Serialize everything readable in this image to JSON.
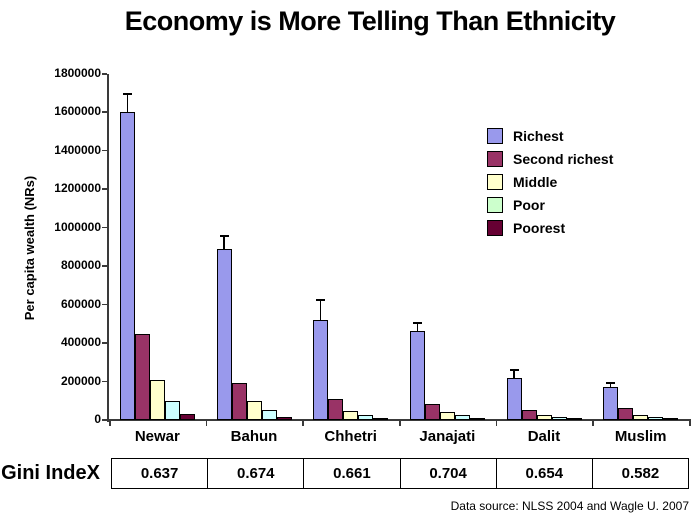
{
  "source": "Data source: NLSS 2004 and Wagle U. 2007",
  "gini": {
    "label": "Gini IndeX",
    "values": [
      "0.637",
      "0.674",
      "0.661",
      "0.704",
      "0.654",
      "0.582"
    ]
  },
  "chart_data": {
    "type": "bar",
    "title": "Economy is More Telling Than Ethnicity",
    "ylabel": "Per capita wealth (NRs)",
    "xlabel": "",
    "ylim": [
      0,
      1800000
    ],
    "ytick_step": 200000,
    "grid": false,
    "legend_position": "upper right",
    "categories": [
      "Newar",
      "Bahun",
      "Chhetri",
      "Janajati",
      "Dalit",
      "Muslim"
    ],
    "series": [
      {
        "name": "Richest",
        "color": "#9999EC",
        "legend_color": "#9999EC",
        "values": [
          1600000,
          890000,
          520000,
          465000,
          220000,
          170000
        ],
        "errors_plus": [
          95000,
          65000,
          105000,
          40000,
          38000,
          22000
        ]
      },
      {
        "name": "Second richest",
        "color": "#993366",
        "legend_color": "#993366",
        "values": [
          450000,
          195000,
          110000,
          85000,
          52000,
          60000
        ]
      },
      {
        "name": "Middle",
        "color": "#FFFFCC",
        "legend_color": "#FFFFCC",
        "values": [
          210000,
          100000,
          45000,
          42000,
          25000,
          28000
        ]
      },
      {
        "name": "Poor",
        "color": "#CCFFFF",
        "legend_color": "#CCFFCC",
        "values": [
          100000,
          50000,
          28000,
          25000,
          14000,
          16000
        ]
      },
      {
        "name": "Poorest",
        "color": "#660033",
        "legend_color": "#660033",
        "values": [
          30000,
          15000,
          10000,
          6000,
          5000,
          8000
        ]
      }
    ]
  }
}
